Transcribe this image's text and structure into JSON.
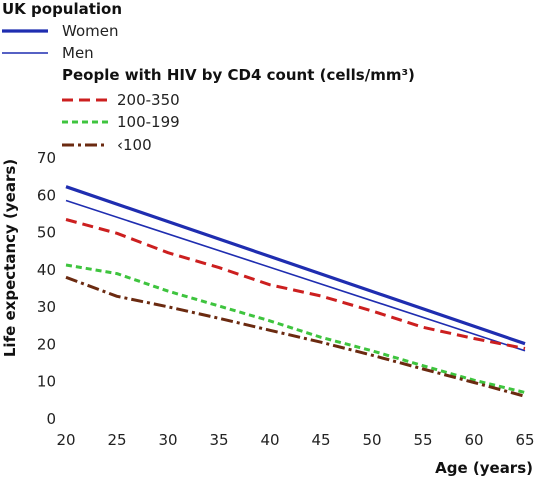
{
  "chart_data": {
    "type": "line",
    "legend_groups": [
      {
        "heading": "UK population",
        "entries": [
          {
            "label": "Women",
            "color": "#1f2db0",
            "style": "solid-thick"
          },
          {
            "label": "Men",
            "color": "#1f2db0",
            "style": "solid-thin"
          }
        ]
      },
      {
        "heading": "People with HIV by CD4 count (cells/mm³)",
        "entries": [
          {
            "label": "200-350",
            "color": "#cc1f1f",
            "style": "dashed"
          },
          {
            "label": "100-199",
            "color": "#3ec43e",
            "style": "dashed-short"
          },
          {
            "label": "‹100",
            "color": "#6b2a10",
            "style": "dash-dot"
          }
        ]
      }
    ],
    "legend_placement": "top-left",
    "xlabel": "Age (years)",
    "ylabel": "Life expectancy (years)",
    "xlim": [
      20,
      65
    ],
    "ylim": [
      0,
      70
    ],
    "x_ticks": [
      20,
      25,
      30,
      35,
      40,
      45,
      50,
      55,
      60,
      65
    ],
    "y_ticks": [
      0,
      10,
      20,
      30,
      40,
      50,
      60,
      70
    ],
    "grid": false,
    "series": [
      {
        "name": "Women",
        "color": "#1f2db0",
        "style": "solid-thick",
        "x": [
          20,
          65
        ],
        "y": [
          62.3,
          20.2
        ]
      },
      {
        "name": "Men",
        "color": "#1f2db0",
        "style": "solid-thin",
        "x": [
          20,
          65
        ],
        "y": [
          58.6,
          18.3
        ]
      },
      {
        "name": "200-350",
        "color": "#cc1f1f",
        "style": "dashed",
        "x": [
          20,
          25,
          30,
          35,
          40,
          45,
          50,
          55,
          60,
          65
        ],
        "y": [
          53.5,
          49.8,
          44.6,
          40.6,
          36.0,
          33.0,
          29.0,
          24.6,
          21.6,
          18.9
        ]
      },
      {
        "name": "100-199",
        "color": "#3ec43e",
        "style": "dashed-short",
        "x": [
          20,
          25,
          30,
          35,
          40,
          45,
          50,
          55,
          60,
          65
        ],
        "y": [
          41.3,
          39.0,
          34.3,
          30.3,
          26.3,
          21.9,
          18.3,
          14.3,
          10.4,
          7.1
        ]
      },
      {
        "name": "‹100",
        "color": "#6b2a10",
        "style": "dash-dot",
        "x": [
          20,
          25,
          30,
          35,
          40,
          45,
          50,
          55,
          60,
          65
        ],
        "y": [
          38.0,
          32.9,
          30.1,
          27.0,
          23.8,
          20.6,
          17.1,
          13.4,
          9.8,
          6.1
        ]
      }
    ]
  }
}
